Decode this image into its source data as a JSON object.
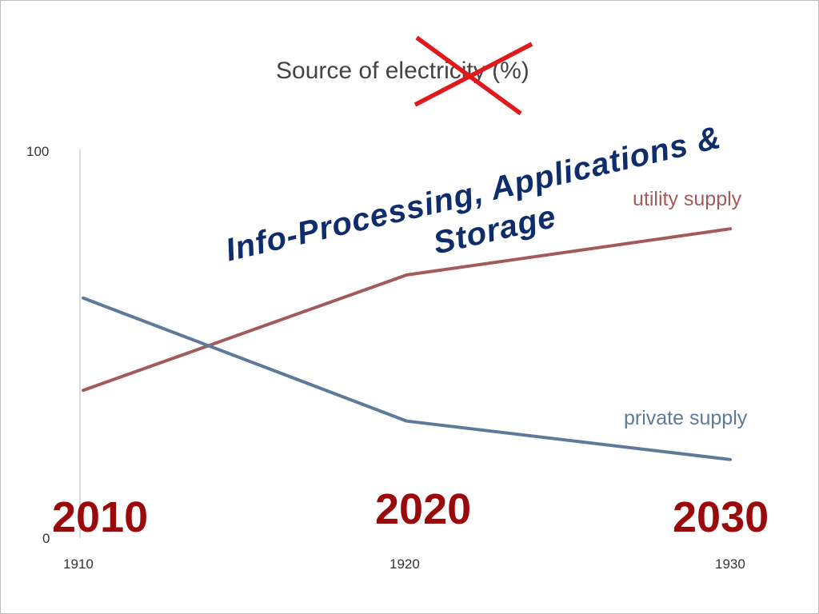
{
  "chart_data": {
    "type": "line",
    "title": "Source of electricity (%)",
    "x": [
      1910,
      1920,
      1930
    ],
    "x_tick_labels": [
      "1910",
      "1920",
      "1930"
    ],
    "ylim": [
      0,
      100
    ],
    "y_tick_labels": [
      "0",
      "100"
    ],
    "grid": false,
    "legend": "inline labels at line ends",
    "series": [
      {
        "name": "utility supply",
        "values": [
          38,
          68,
          80
        ],
        "color": "#a35a5a"
      },
      {
        "name": "private supply",
        "values": [
          62,
          30,
          20
        ],
        "color": "#5f7a99"
      }
    ]
  },
  "overlay": {
    "strike_mark_color": "#e0191d",
    "headline_line1": "Info-Processing, Applications &",
    "headline_line2": "Storage",
    "year_labels": [
      "2010",
      "2020",
      "2030"
    ],
    "year_label_color": "#9b0a0a",
    "headline_color": "#0f2d6b"
  }
}
